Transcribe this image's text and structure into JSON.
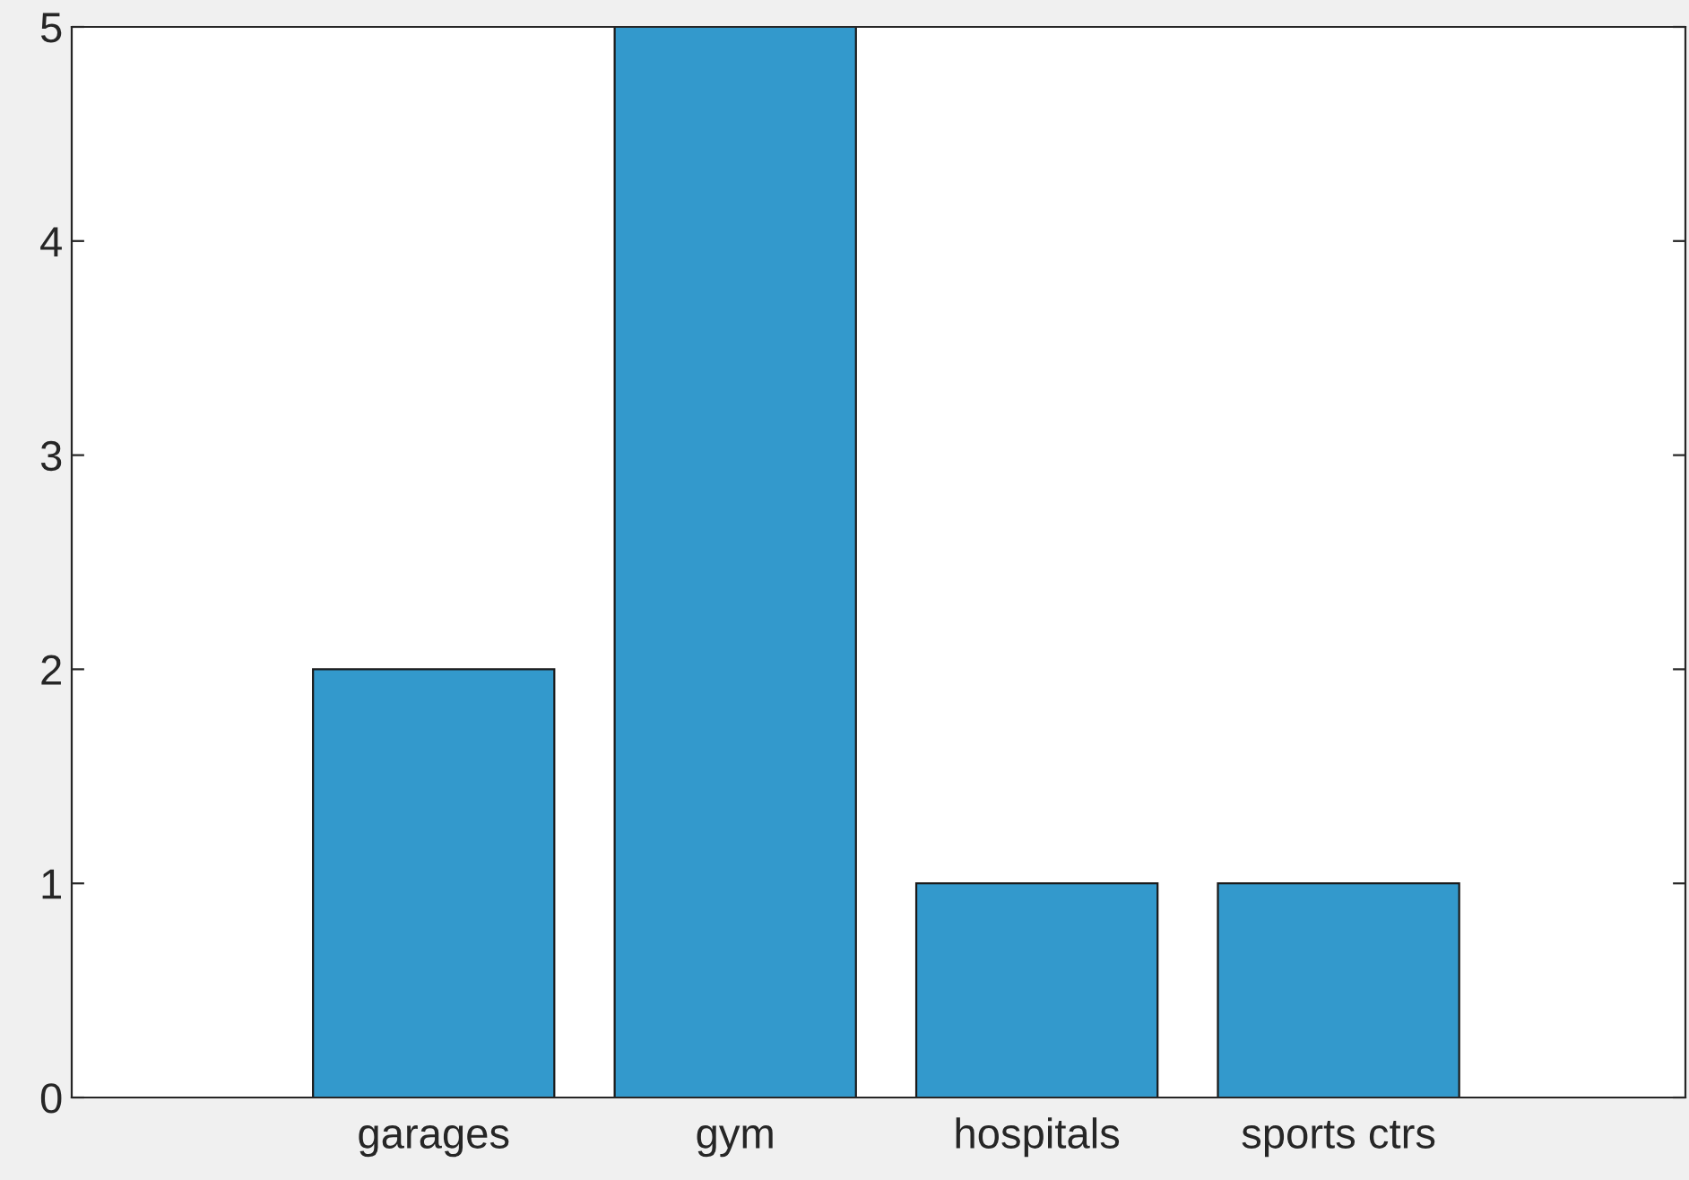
{
  "chart_data": {
    "type": "bar",
    "categories": [
      "garages",
      "gym",
      "hospitals",
      "sports ctrs"
    ],
    "values": [
      2,
      5,
      1,
      1
    ],
    "color": "#3399cc",
    "ylim": [
      0,
      5
    ],
    "yticks": [
      0,
      1,
      2,
      3,
      4,
      5
    ],
    "grid": false
  }
}
